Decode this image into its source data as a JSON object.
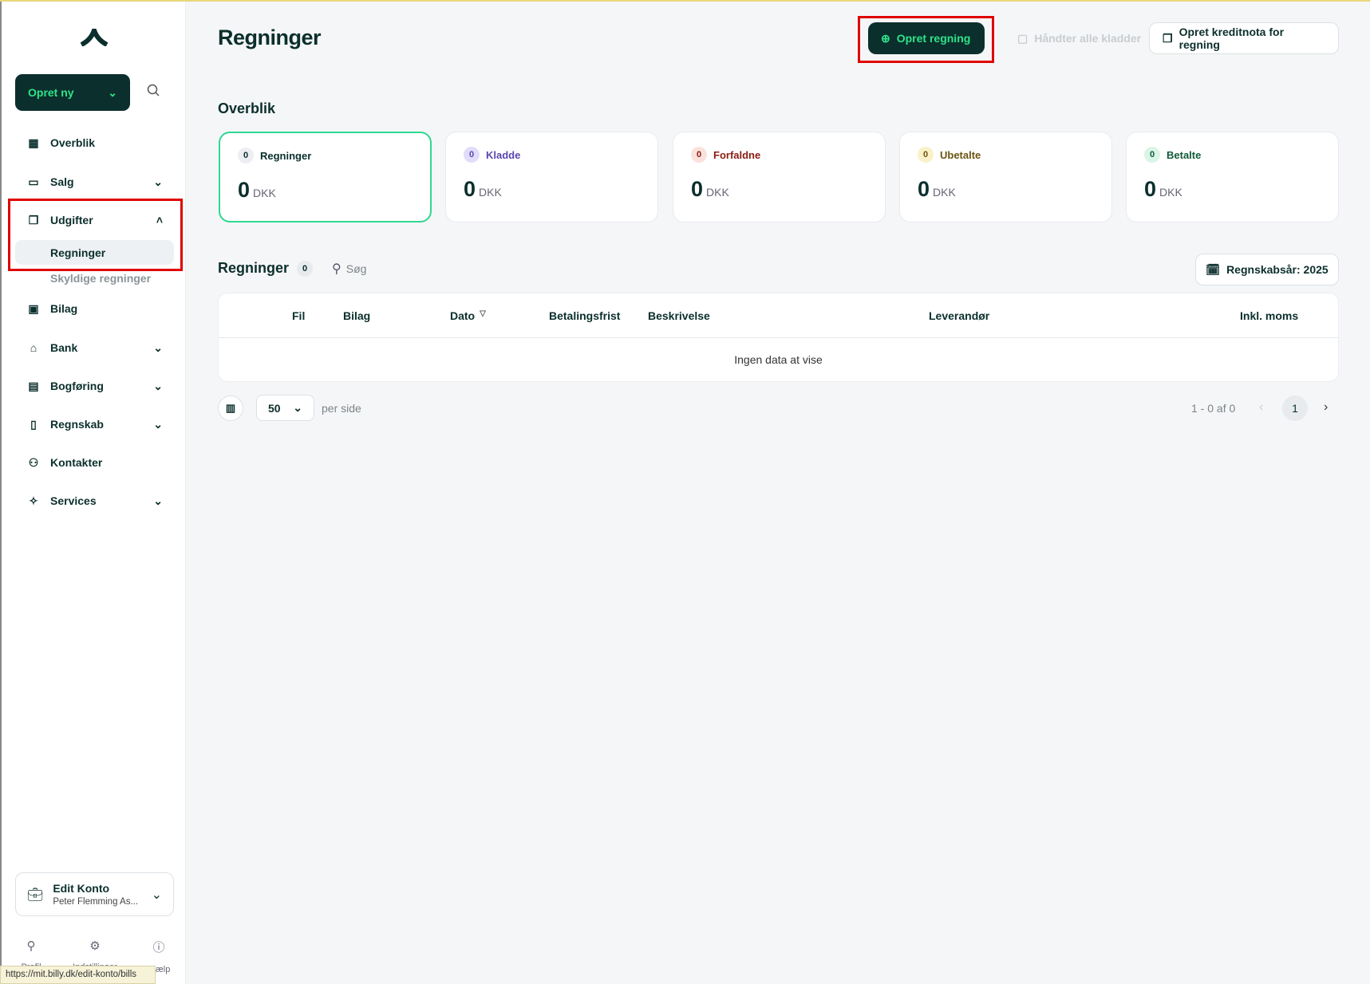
{
  "sidebar": {
    "create_new": "Opret ny",
    "items": [
      {
        "label": "Overblik",
        "icon": "chart-board-icon"
      },
      {
        "label": "Salg",
        "icon": "wallet-icon",
        "chevron": "down"
      },
      {
        "label": "Udgifter",
        "icon": "documents-icon",
        "chevron": "up",
        "expanded": true,
        "children": [
          {
            "label": "Regninger",
            "active": true
          },
          {
            "label": "Skyldige regninger"
          }
        ]
      },
      {
        "label": "Bilag",
        "icon": "image-icon"
      },
      {
        "label": "Bank",
        "icon": "bank-icon",
        "chevron": "down"
      },
      {
        "label": "Bogføring",
        "icon": "ledger-icon",
        "chevron": "down"
      },
      {
        "label": "Regnskab",
        "icon": "report-icon",
        "chevron": "down"
      },
      {
        "label": "Kontakter",
        "icon": "contacts-icon"
      },
      {
        "label": "Services",
        "icon": "services-icon",
        "chevron": "down"
      }
    ],
    "account": {
      "name": "Edit Konto",
      "owner": "Peter Flemming As..."
    },
    "bottom": [
      {
        "label": "Profil",
        "icon": "user-icon"
      },
      {
        "label": "Indstillinger",
        "icon": "gear-icon"
      },
      {
        "label": "Hjælp",
        "icon": "help-icon"
      }
    ]
  },
  "status_url": "https://mit.billy.dk/edit-konto/bills",
  "header": {
    "title": "Regninger",
    "create_bill": "Opret regning",
    "handle_drafts": "Håndter alle kladder",
    "credit_note": "Opret kreditnota for regning"
  },
  "overview": {
    "title": "Overblik",
    "cards": [
      {
        "label": "Regninger",
        "count": "0",
        "amount": "0",
        "currency": "DKK",
        "color": "#0b2f2c",
        "pill": "#eceef1"
      },
      {
        "label": "Kladde",
        "count": "0",
        "amount": "0",
        "currency": "DKK",
        "color": "#5b46b0",
        "pill": "#e2dcfb"
      },
      {
        "label": "Forfaldne",
        "count": "0",
        "amount": "0",
        "currency": "DKK",
        "color": "#8a1c12",
        "pill": "#fbe1dc"
      },
      {
        "label": "Ubetalte",
        "count": "0",
        "amount": "0",
        "currency": "DKK",
        "color": "#6b5410",
        "pill": "#fbf1c8"
      },
      {
        "label": "Betalte",
        "count": "0",
        "amount": "0",
        "currency": "DKK",
        "color": "#0f5b3a",
        "pill": "#d8f5e6"
      }
    ]
  },
  "list": {
    "title": "Regninger",
    "count": "0",
    "search_placeholder": "Søg",
    "fiscal_year": "Regnskabsår: 2025",
    "columns": [
      "Fil",
      "Bilag",
      "Dato",
      "Betalingsfrist",
      "Beskrivelse",
      "Leverandør",
      "Inkl. moms"
    ],
    "empty": "Ingen data at vise",
    "per_page": "50",
    "per_page_label": "per side",
    "range": "1 - 0 af 0",
    "page": "1"
  }
}
